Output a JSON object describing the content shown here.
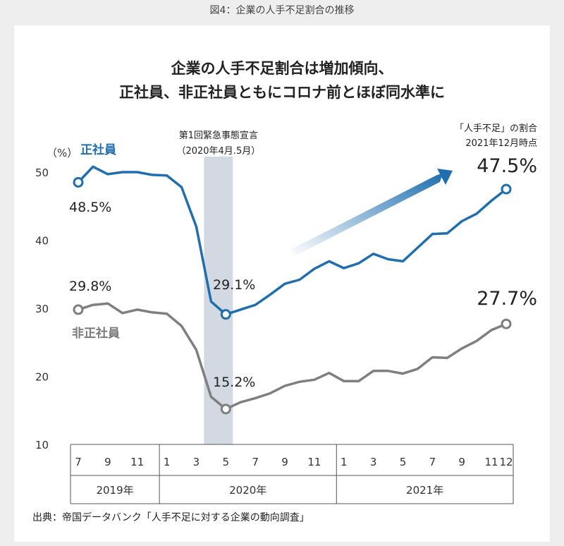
{
  "figure_label": "図4：企業の人手不足割合の推移",
  "source": "出典：帝国データバンク「人手不足に対する企業の動向調査」",
  "chart_data": {
    "type": "line",
    "title": [
      "企業の人手不足割合は増加傾向、",
      "正社員、非正社員ともにコロナ前とほぼ同水準に"
    ],
    "y_unit": "（%）",
    "ylim": [
      10,
      50
    ],
    "yticks": [
      10,
      20,
      30,
      40,
      50
    ],
    "grid": false,
    "x": [
      "2019-07",
      "2019-08",
      "2019-09",
      "2019-10",
      "2019-11",
      "2019-12",
      "2020-01",
      "2020-02",
      "2020-03",
      "2020-04",
      "2020-05",
      "2020-06",
      "2020-07",
      "2020-08",
      "2020-09",
      "2020-10",
      "2020-11",
      "2020-12",
      "2021-01",
      "2021-02",
      "2021-03",
      "2021-04",
      "2021-05",
      "2021-06",
      "2021-07",
      "2021-08",
      "2021-09",
      "2021-10",
      "2021-11",
      "2021-12"
    ],
    "month_ticks": [
      {
        "index": 0,
        "label": "7"
      },
      {
        "index": 2,
        "label": "9"
      },
      {
        "index": 4,
        "label": "11"
      },
      {
        "index": 6,
        "label": "1"
      },
      {
        "index": 8,
        "label": "3"
      },
      {
        "index": 10,
        "label": "5"
      },
      {
        "index": 12,
        "label": "7"
      },
      {
        "index": 14,
        "label": "9"
      },
      {
        "index": 16,
        "label": "11"
      },
      {
        "index": 18,
        "label": "1"
      },
      {
        "index": 20,
        "label": "3"
      },
      {
        "index": 22,
        "label": "5"
      },
      {
        "index": 24,
        "label": "7"
      },
      {
        "index": 26,
        "label": "9"
      },
      {
        "index": 28,
        "label": "11"
      },
      {
        "index": 29,
        "label": "12"
      }
    ],
    "years": [
      {
        "label": "2019年",
        "start": 0,
        "end": 5
      },
      {
        "label": "2020年",
        "start": 6,
        "end": 17
      },
      {
        "label": "2021年",
        "start": 18,
        "end": 29
      }
    ],
    "series": [
      {
        "name": "正社員",
        "color": "#1f6fb0",
        "values": [
          48.5,
          50.8,
          49.7,
          50.0,
          50.0,
          49.6,
          49.5,
          47.8,
          42.0,
          31.0,
          29.1,
          29.8,
          30.5,
          32.0,
          33.6,
          34.2,
          35.8,
          36.9,
          35.9,
          36.6,
          38.0,
          37.2,
          36.9,
          38.9,
          40.9,
          41.0,
          42.8,
          43.9,
          45.8,
          47.5
        ],
        "labels": [
          {
            "index": 0,
            "text": "48.5%"
          },
          {
            "index": 10,
            "text": "29.1%"
          },
          {
            "index": 29,
            "text": "47.5%"
          }
        ]
      },
      {
        "name": "非正社員",
        "color": "#7f7f7f",
        "values": [
          29.8,
          30.5,
          30.7,
          29.3,
          29.8,
          29.4,
          29.2,
          27.4,
          23.9,
          17.0,
          15.2,
          16.2,
          16.8,
          17.5,
          18.6,
          19.2,
          19.5,
          20.5,
          19.3,
          19.3,
          20.8,
          20.8,
          20.4,
          21.1,
          22.8,
          22.7,
          24.1,
          25.2,
          26.8,
          27.7
        ],
        "labels": [
          {
            "index": 0,
            "text": "29.8%"
          },
          {
            "index": 10,
            "text": "15.2%"
          },
          {
            "index": 29,
            "text": "27.7%"
          }
        ]
      }
    ],
    "highlight": {
      "start_index": 9,
      "end_index": 10,
      "label_lines": [
        "第1回緊急事態宣言",
        "（2020年4月.5月）"
      ]
    },
    "annotation": {
      "lines": [
        "「人手不足」の割合",
        "2021年12月時点"
      ]
    }
  }
}
